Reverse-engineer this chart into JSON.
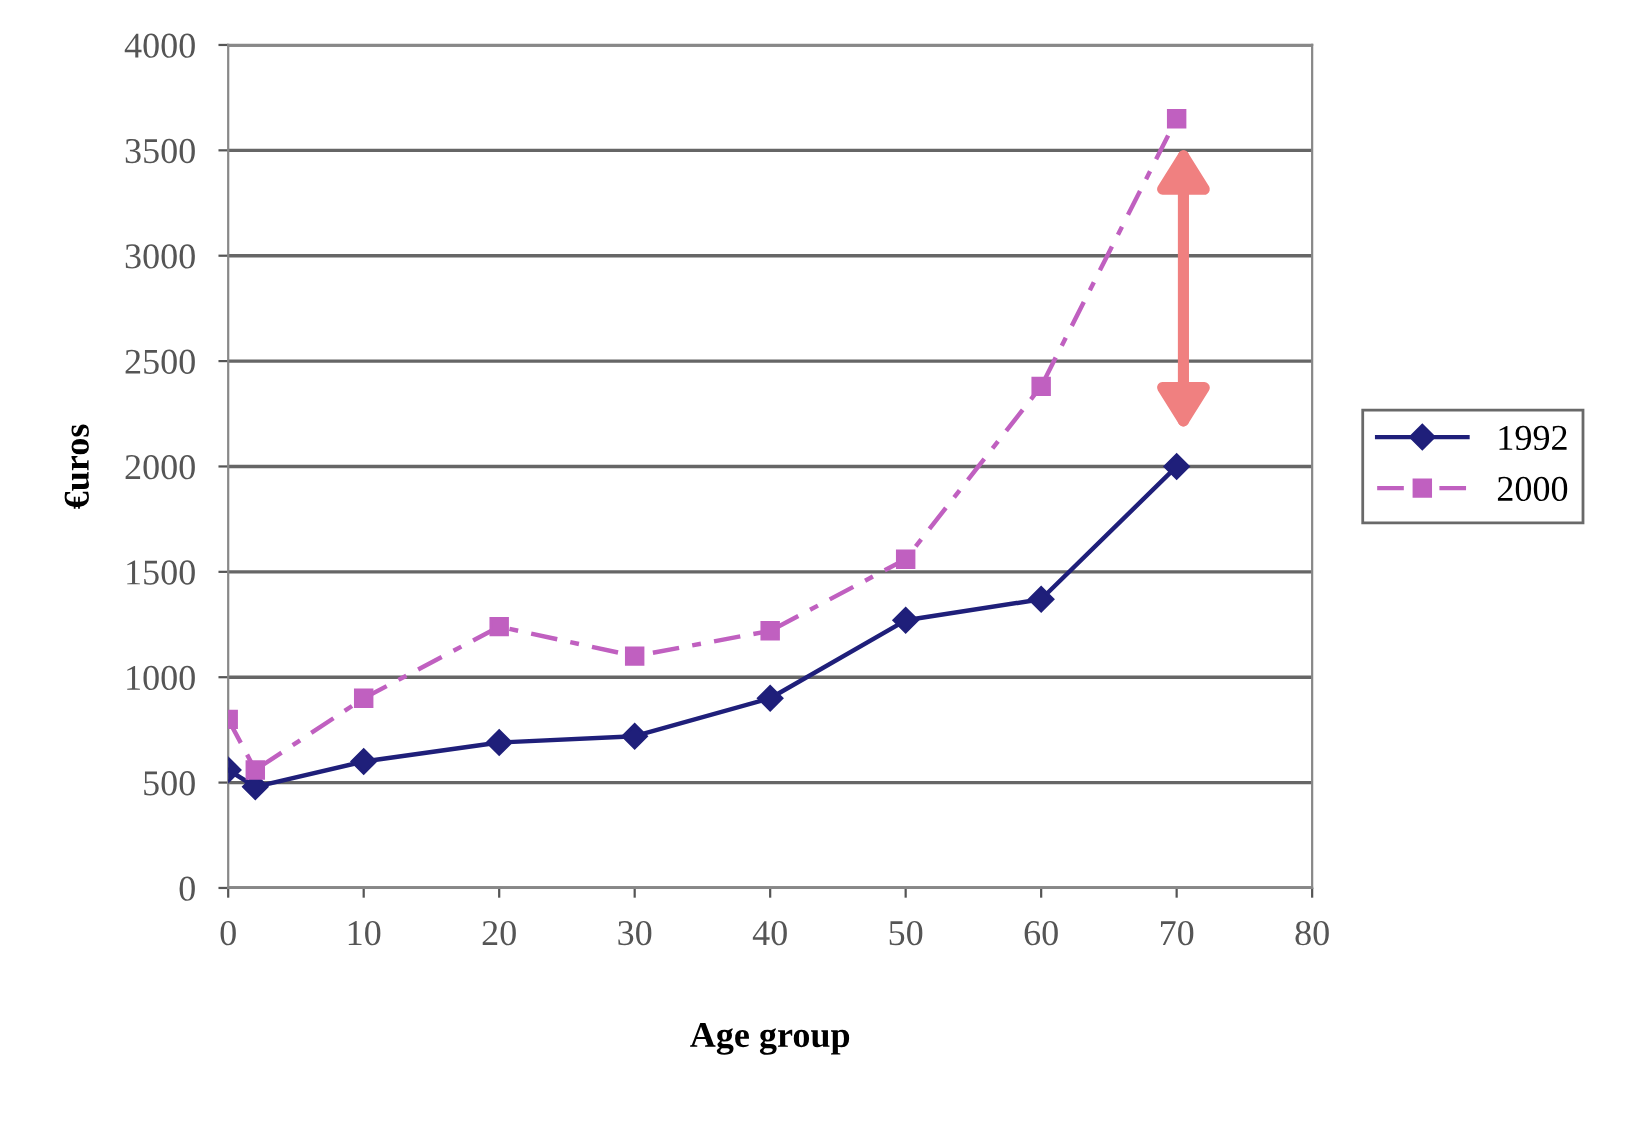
{
  "chart_data": {
    "type": "line",
    "xlabel": "Age group",
    "ylabel": "€uros",
    "xlim": [
      0,
      80
    ],
    "xticks": [
      0,
      10,
      20,
      30,
      40,
      50,
      60,
      70,
      80
    ],
    "ylim": [
      0,
      4000
    ],
    "yticks": [
      0,
      500,
      1000,
      1500,
      2000,
      2500,
      3000,
      3500,
      4000
    ],
    "grid": "y",
    "legend": "right",
    "series": [
      {
        "name": "1992",
        "color": "#1f1f7a",
        "marker": "diamond",
        "line_style": "solid",
        "x": [
          0,
          2,
          10,
          20,
          30,
          40,
          50,
          60,
          70
        ],
        "values": [
          560,
          480,
          600,
          690,
          720,
          900,
          1270,
          1370,
          2000
        ]
      },
      {
        "name": "2000",
        "color": "#c060c0",
        "marker": "square",
        "line_style": "dashed",
        "x": [
          0,
          2,
          10,
          20,
          30,
          40,
          50,
          60,
          70
        ],
        "values": [
          800,
          560,
          900,
          1240,
          1100,
          1220,
          1560,
          2380,
          3650
        ]
      }
    ]
  }
}
